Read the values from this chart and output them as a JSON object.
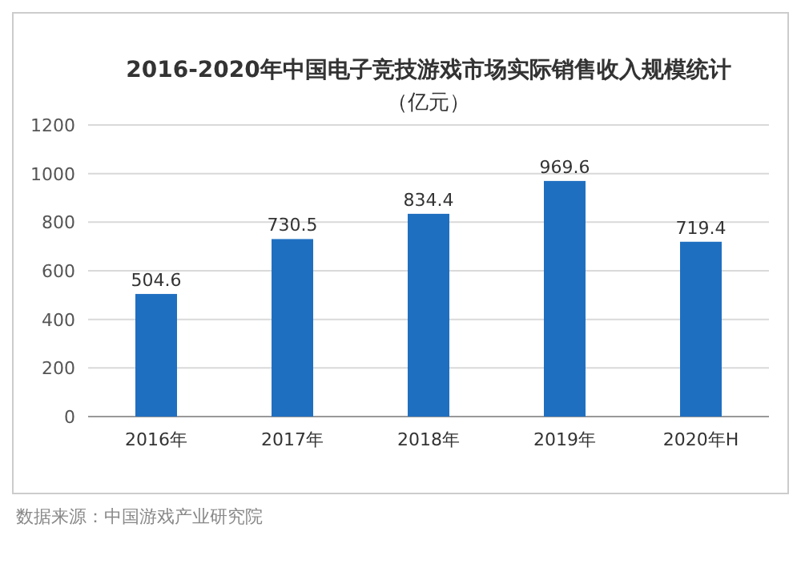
{
  "chart_data": {
    "type": "bar",
    "title": "2016-2020年中国电子竞技游戏市场实际销售收入规模统计",
    "subtitle": "（亿元）",
    "categories": [
      "2016年",
      "2017年",
      "2018年",
      "2019年",
      "2020年H"
    ],
    "values": [
      504.6,
      730.5,
      834.4,
      969.6,
      719.4
    ],
    "color": "#1f6fc1",
    "ylim": [
      0,
      1200
    ],
    "yticks": [
      0,
      200,
      400,
      600,
      800,
      1000,
      1200
    ],
    "grid": "y",
    "data_labels": true,
    "annotations": [
      "数据来源：中国游戏产业研究院"
    ]
  }
}
